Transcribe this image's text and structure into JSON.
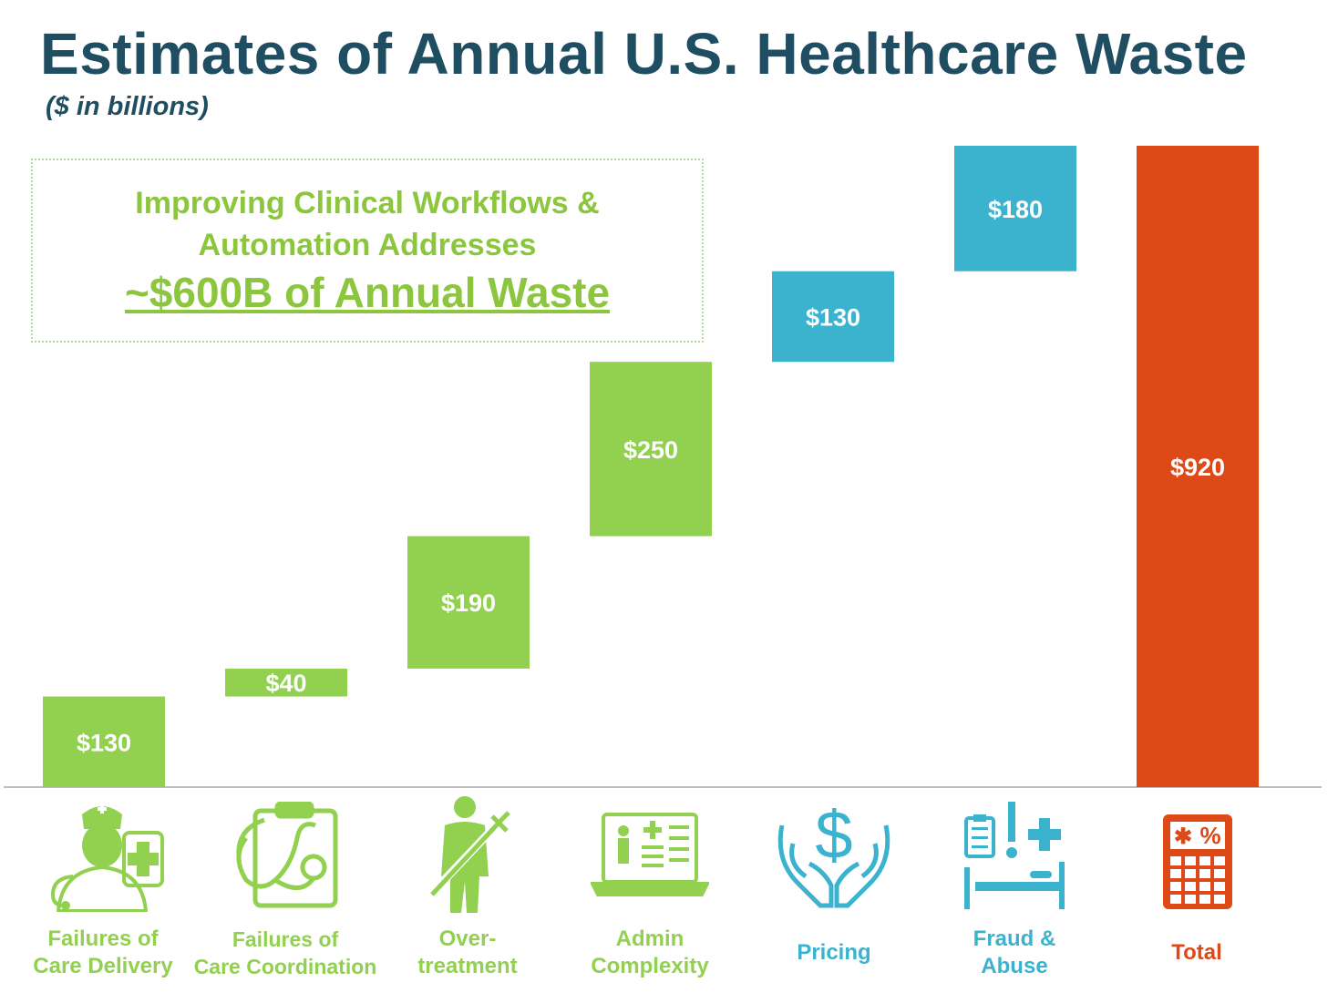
{
  "title": "Estimates of Annual U.S. Healthcare Waste",
  "subtitle": "($ in billions)",
  "callout": {
    "line1": "Improving Clinical Workflows &",
    "line2": "Automation Addresses",
    "line3": "~$600B of Annual Waste"
  },
  "colors": {
    "green": "#92d050",
    "blue": "#3bb3cf",
    "total": "#dd4a17",
    "title": "#1f4e63"
  },
  "chart_data": {
    "type": "waterfall",
    "unit": "$ in billions",
    "categories": [
      {
        "label_line1": "Failures of",
        "label_line2": "Care Delivery",
        "value": 130,
        "start": 0,
        "color": "green",
        "icon": "nurse-icon"
      },
      {
        "label_line1": "Failures of",
        "label_line2": "Care Coordination",
        "value": 40,
        "start": 130,
        "color": "green",
        "icon": "stethoscope-clipboard-icon"
      },
      {
        "label_line1": "Over-",
        "label_line2": "treatment",
        "value": 190,
        "start": 170,
        "color": "green",
        "icon": "patient-syringe-icon"
      },
      {
        "label_line1": "Admin",
        "label_line2": "Complexity",
        "value": 250,
        "start": 360,
        "color": "green",
        "icon": "laptop-record-icon"
      },
      {
        "label_line1": "Pricing",
        "label_line2": "",
        "value": 130,
        "start": 610,
        "color": "blue",
        "icon": "hands-dollar-icon"
      },
      {
        "label_line1": "Fraud &",
        "label_line2": "Abuse",
        "value": 180,
        "start": 740,
        "color": "blue",
        "icon": "bed-alert-icon"
      },
      {
        "label_line1": "Total",
        "label_line2": "",
        "value": 920,
        "start": 0,
        "color": "total",
        "icon": "calculator-icon"
      }
    ],
    "bar_labels": [
      "$130",
      "$40",
      "$190",
      "$250",
      "$130",
      "$180",
      "$920"
    ],
    "ylim": [
      0,
      920
    ]
  }
}
